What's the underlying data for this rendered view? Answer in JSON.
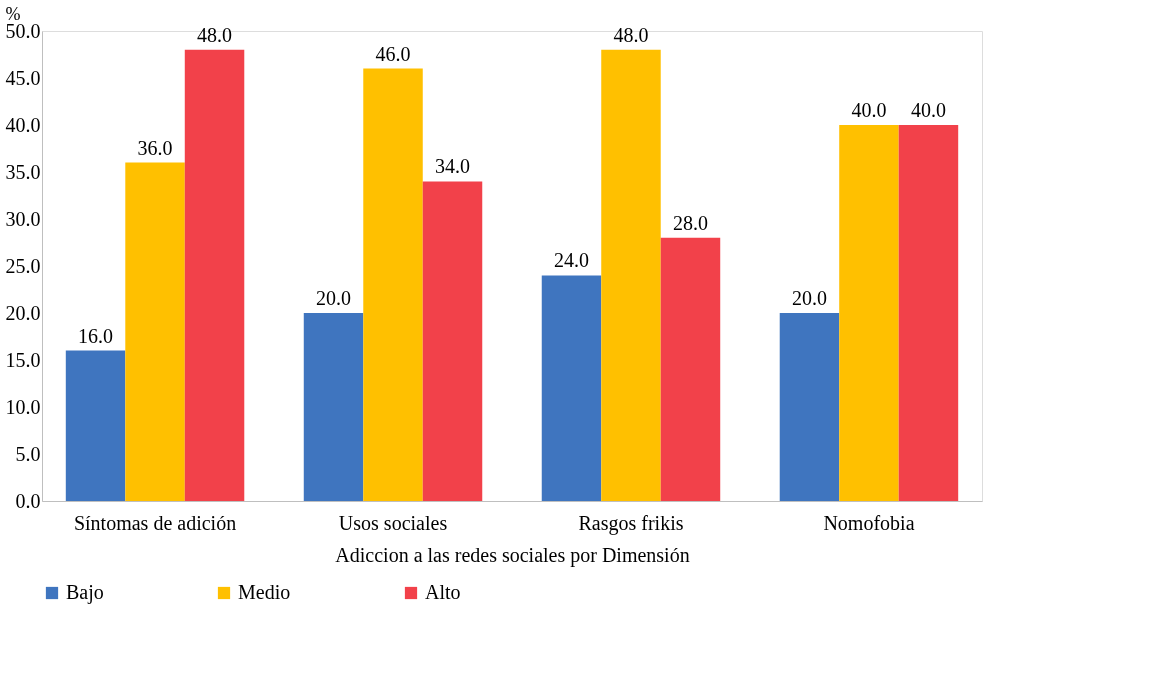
{
  "chart_data": {
    "type": "bar",
    "categories": [
      "Síntomas de adición",
      "Usos sociales",
      "Rasgos frikis",
      "Nomofobia"
    ],
    "series": [
      {
        "name": "Bajo",
        "color": "#3f75bf",
        "values": [
          16,
          20,
          24,
          20
        ],
        "value_labels": [
          "16.0",
          "20.0",
          "24.0",
          "20.0"
        ]
      },
      {
        "name": "Medio",
        "color": "#ffc000",
        "values": [
          36,
          46,
          48,
          40
        ],
        "value_labels": [
          "36.0",
          "46.0",
          "48.0",
          "40.0"
        ]
      },
      {
        "name": "Alto",
        "color": "#f2414a",
        "values": [
          48,
          34,
          28,
          40
        ],
        "value_labels": [
          "48.0",
          "34.0",
          "28.0",
          "40.0"
        ]
      }
    ],
    "ylabel": "%",
    "xlabel": "Adiccion a las redes sociales por Dimensión",
    "ylim": [
      0,
      50
    ],
    "yticks": [
      {
        "value": 0,
        "label": "0.0"
      },
      {
        "value": 5,
        "label": "5.0"
      },
      {
        "value": 10,
        "label": "10.0"
      },
      {
        "value": 15,
        "label": "15.0"
      },
      {
        "value": 20,
        "label": "20.0"
      },
      {
        "value": 25,
        "label": "25.0"
      },
      {
        "value": 30,
        "label": "30.0"
      },
      {
        "value": 35,
        "label": "35.0"
      },
      {
        "value": 40,
        "label": "40.0"
      },
      {
        "value": 45,
        "label": "45.0"
      },
      {
        "value": 50,
        "label": "50.0"
      }
    ],
    "grid": false,
    "legend": "bottom"
  }
}
